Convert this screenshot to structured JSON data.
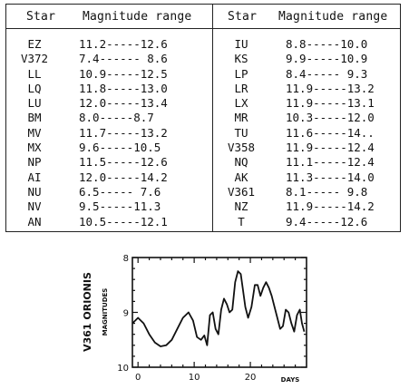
{
  "table": {
    "headers": [
      "Star",
      "Magnitude range",
      "Star",
      "Magnitude range"
    ],
    "left": [
      {
        "star": "EZ",
        "range": "11.2-----12.6"
      },
      {
        "star": "V372",
        "range": "7.4------ 8.6"
      },
      {
        "star": "LL",
        "range": "10.9-----12.5"
      },
      {
        "star": "LQ",
        "range": "11.8-----13.0"
      },
      {
        "star": "LU",
        "range": "12.0-----13.4"
      },
      {
        "star": "BM",
        "range": "8.0-----8.7"
      },
      {
        "star": "MV",
        "range": "11.7-----13.2"
      },
      {
        "star": "MX",
        "range": "9.6-----10.5"
      },
      {
        "star": "NP",
        "range": "11.5-----12.6"
      },
      {
        "star": "AI",
        "range": "12.0-----14.2"
      },
      {
        "star": "NU",
        "range": "6.5----- 7.6"
      },
      {
        "star": "NV",
        "range": "9.5-----11.3"
      },
      {
        "star": "AN",
        "range": "10.5-----12.1"
      }
    ],
    "right": [
      {
        "star": "IU",
        "range": "8.8-----10.0"
      },
      {
        "star": "KS",
        "range": "9.9-----10.9"
      },
      {
        "star": "LP",
        "range": "8.4----- 9.3"
      },
      {
        "star": "LR",
        "range": "11.9-----13.2"
      },
      {
        "star": "LX",
        "range": "11.9-----13.1"
      },
      {
        "star": "MR",
        "range": "10.3-----12.0"
      },
      {
        "star": "TU",
        "range": "11.6-----14.."
      },
      {
        "star": "V358",
        "range": "11.9-----12.4"
      },
      {
        "star": "NQ",
        "range": "11.1-----12.4"
      },
      {
        "star": "AK",
        "range": "11.3-----14.0"
      },
      {
        "star": "V361",
        "range": "8.1----- 9.8"
      },
      {
        "star": "NZ",
        "range": "11.9-----14.2"
      },
      {
        "star": "T",
        "range": "9.4-----12.6"
      }
    ]
  },
  "chart_data": {
    "type": "line",
    "title": "V361 ORIONIS",
    "ylabel": "MAGNITUDES",
    "xlabel": "DAYS",
    "xlim": [
      -1,
      30
    ],
    "ylim": [
      10,
      8
    ],
    "y_inverted": true,
    "xticks": [
      "0",
      "10",
      "20"
    ],
    "yticks": [
      "8",
      "9",
      "10"
    ],
    "series": [
      {
        "x": [
          -1,
          0,
          1,
          2,
          3,
          4,
          5,
          6,
          7,
          8,
          9,
          9.8,
          10.5,
          11.2,
          11.8,
          12.3,
          12.8,
          13.3,
          13.8,
          14.3,
          14.8,
          15.3,
          15.8,
          16.3,
          16.8,
          17.3,
          17.8,
          18.3,
          18.7,
          19.1,
          19.6,
          20.2,
          20.8,
          21.3,
          21.8,
          22.3,
          22.8,
          23.3,
          23.8,
          24.3,
          24.8,
          25.3,
          25.8,
          26.3,
          26.8,
          27.3,
          27.8,
          28.3,
          28.8,
          29.2,
          29.6
        ],
        "y": [
          9.2,
          9.1,
          9.2,
          9.4,
          9.55,
          9.62,
          9.6,
          9.5,
          9.3,
          9.1,
          9.0,
          9.15,
          9.45,
          9.5,
          9.42,
          9.6,
          9.05,
          9.0,
          9.3,
          9.4,
          8.95,
          8.75,
          8.85,
          9.0,
          8.95,
          8.45,
          8.25,
          8.3,
          8.6,
          8.9,
          9.1,
          8.9,
          8.5,
          8.5,
          8.7,
          8.55,
          8.45,
          8.55,
          8.7,
          8.9,
          9.1,
          9.3,
          9.25,
          8.95,
          9.0,
          9.2,
          9.35,
          9.05,
          8.95,
          9.2,
          9.35
        ]
      }
    ]
  }
}
